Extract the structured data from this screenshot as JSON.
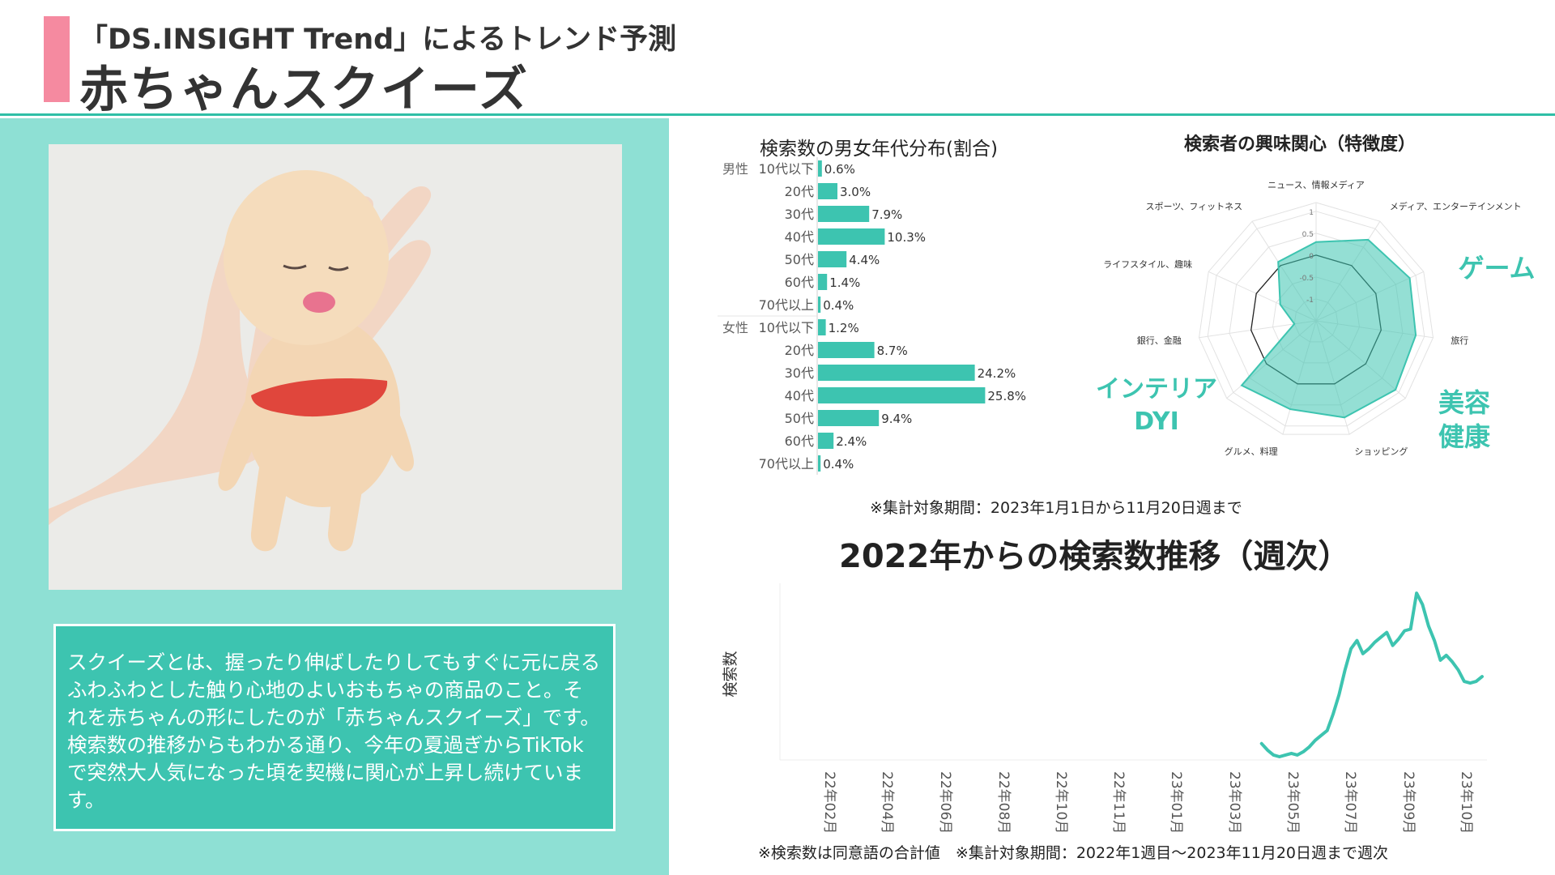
{
  "header": {
    "subtitle": "「DS.INSIGHT Trend」によるトレンド予測",
    "title": "赤ちゃんスクイーズ"
  },
  "description": "スクイーズとは、握ったり伸ばしたりしてもすぐに元に戻るふわふわとした触り心地のよいおもちゃの商品のこと。それを赤ちゃんの形にしたのが「赤ちゃんスクイーズ」です。検索数の推移からもわかる通り、今年の夏過ぎからTikTokで突然大人気になった頃を契機に関心が上昇し続けています。",
  "notes": {
    "period1": "※集計対象期間：2023年1月1日から11月20日週まで",
    "period2": "※検索数は同意語の合計値　※集計対象期間：2022年1週目〜2023年11月20日週まで週次"
  },
  "colors": {
    "accent": "#3dc4b0",
    "pink": "#f58aa0",
    "panel": "#8ee0d4"
  },
  "chart_data": [
    {
      "type": "bar",
      "orientation": "horizontal",
      "title": "検索数の男女年代分布(割合)",
      "groups": [
        {
          "name": "男性",
          "categories": [
            "10代以下",
            "20代",
            "30代",
            "40代",
            "50代",
            "60代",
            "70代以上"
          ],
          "values": [
            0.6,
            3.0,
            7.9,
            10.3,
            4.4,
            1.4,
            0.4
          ],
          "labels": [
            "0.6%",
            "3.0%",
            "7.9%",
            "10.3%",
            "4.4%",
            "1.4%",
            "0.4%"
          ]
        },
        {
          "name": "女性",
          "categories": [
            "10代以下",
            "20代",
            "30代",
            "40代",
            "50代",
            "60代",
            "70代以上"
          ],
          "values": [
            1.2,
            8.7,
            24.2,
            25.8,
            9.4,
            2.4,
            0.4
          ],
          "labels": [
            "1.2%",
            "8.7%",
            "24.2%",
            "25.8%",
            "9.4%",
            "2.4%",
            "0.4%"
          ]
        }
      ],
      "xlim": [
        0,
        30
      ]
    },
    {
      "type": "radar",
      "title": "検索者の興味関心（特徴度）",
      "axes": [
        "ニュース、情報メディア",
        "メディア、エンターテインメント",
        "ゲーム",
        "旅行",
        "美容健康",
        "ショッピング",
        "グルメ、料理",
        "インテリアDYI",
        "銀行、金融",
        "ライフスタイル、趣味",
        "スポーツ、フィットネス"
      ],
      "axis_labels_visible": [
        "ニュース、情報メディア",
        "メディア、エンターテインメント",
        "",
        "旅行",
        "",
        "ショッピング",
        "グルメ、料理",
        "",
        "銀行、金融",
        "ライフスタイル、趣味",
        "スポーツ、フィットネス"
      ],
      "values": [
        0.3,
        0.7,
        0.85,
        0.8,
        0.9,
        0.8,
        0.6,
        0.75,
        -1.0,
        -0.6,
        0.1
      ],
      "rlim": [
        -1.5,
        1.2
      ],
      "ticks": [
        1,
        0.5,
        0,
        -0.5,
        -1
      ],
      "tick_labels": [
        "1",
        "0.5",
        "0",
        "-0.5",
        "-1"
      ],
      "highlights": [
        {
          "text": "ゲーム"
        },
        {
          "text": "美容"
        },
        {
          "text": "健康"
        },
        {
          "text": "インテリア"
        },
        {
          "text": "DYI"
        }
      ]
    },
    {
      "type": "line",
      "title": "2022年からの検索数推移（週次）",
      "ylabel": "検索数",
      "x_tick_labels": [
        "22年02月",
        "22年04月",
        "22年06月",
        "22年08月",
        "22年10月",
        "22年11月",
        "23年01月",
        "23年03月",
        "23年05月",
        "23年07月",
        "23年09月",
        "23年10月"
      ],
      "series": [
        {
          "values": [
            null,
            null,
            null,
            null,
            null,
            null,
            null,
            null,
            null,
            null,
            null,
            null,
            null,
            null,
            null,
            null,
            null,
            null,
            null,
            null,
            null,
            null,
            null,
            null,
            null,
            null,
            null,
            null,
            null,
            null,
            null,
            null,
            null,
            null,
            null,
            null,
            null,
            null,
            null,
            null,
            null,
            null,
            null,
            null,
            null,
            null,
            null,
            null,
            null,
            null,
            null,
            null,
            null,
            null,
            null,
            null,
            null,
            null,
            null,
            null,
            null,
            null,
            null,
            null,
            null,
            null,
            null,
            null,
            null,
            null,
            null,
            null,
            null,
            null,
            null,
            null,
            null,
            null,
            null,
            null,
            10,
            6,
            3,
            2,
            3,
            4,
            3,
            5,
            8,
            12,
            15,
            18,
            28,
            40,
            55,
            68,
            73,
            65,
            68,
            72,
            75,
            78,
            70,
            74,
            79,
            80,
            102,
            95,
            82,
            73,
            61,
            64,
            60,
            55,
            48,
            47,
            48,
            51
          ]
        }
      ],
      "ylim": [
        0,
        100
      ],
      "grid": false
    }
  ]
}
